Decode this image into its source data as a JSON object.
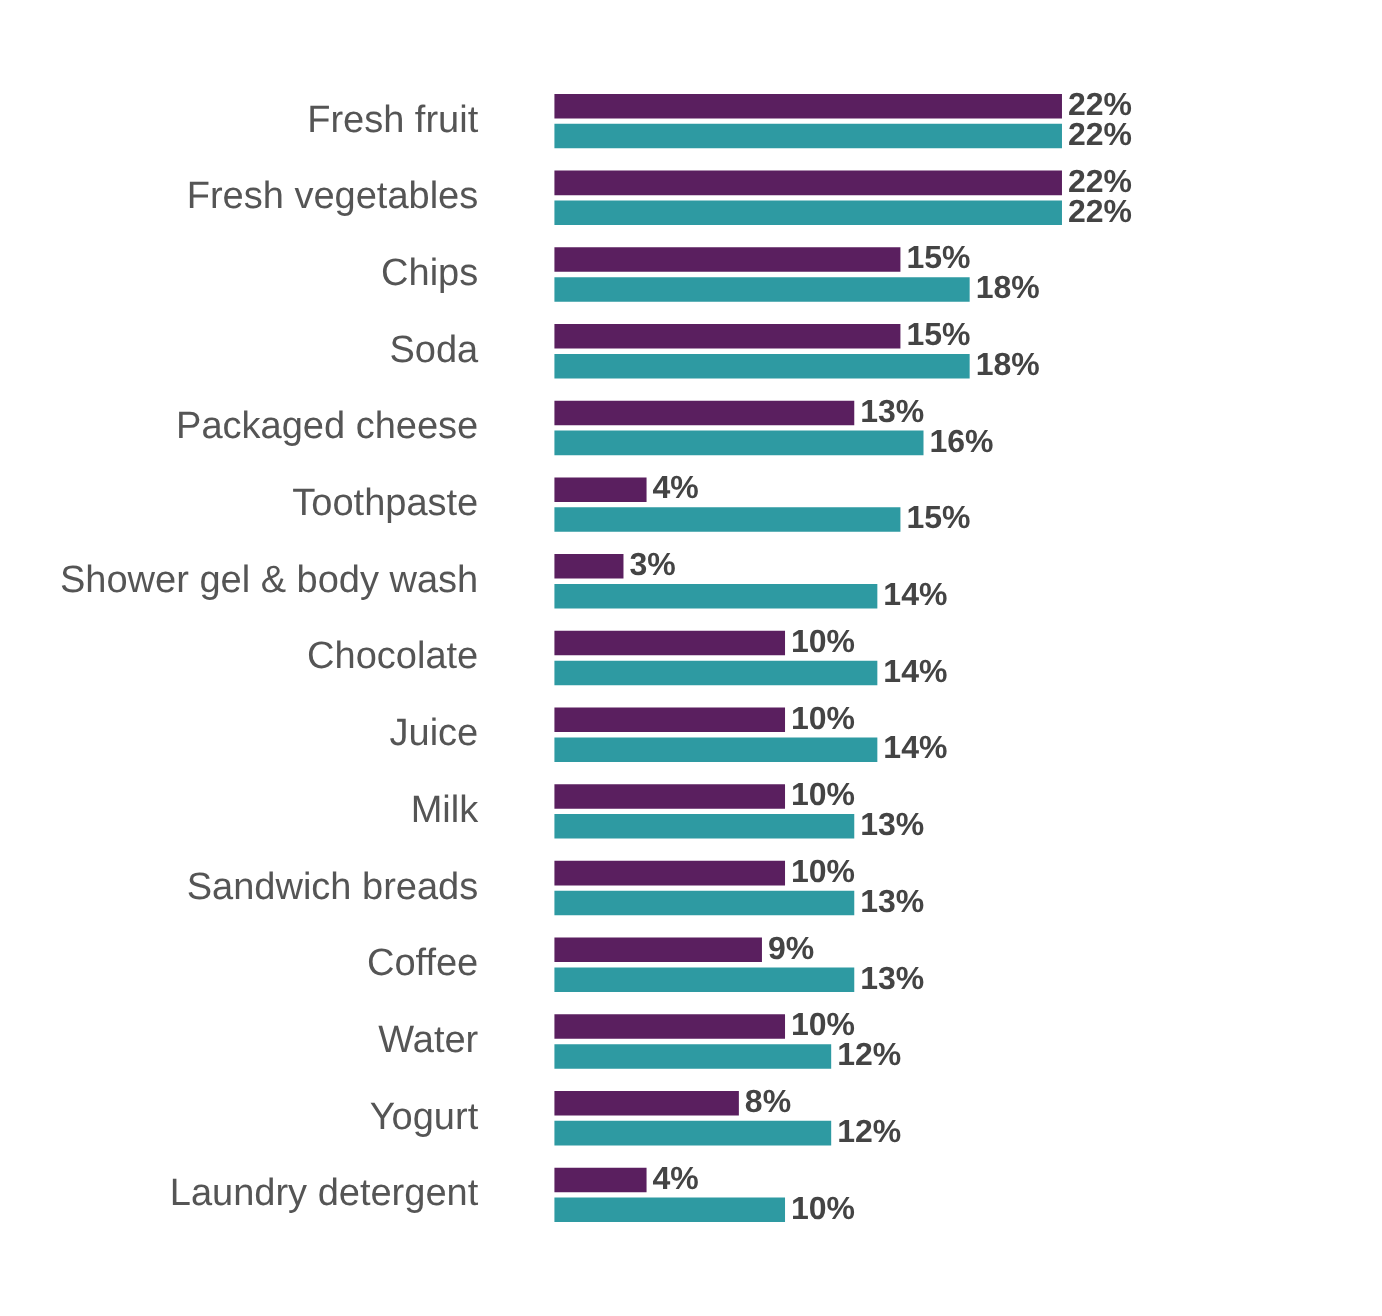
{
  "chart_data": {
    "type": "bar",
    "orientation": "horizontal",
    "categories": [
      "Fresh fruit",
      "Fresh vegetables",
      "Chips",
      "Soda",
      "Packaged cheese",
      "Toothpaste",
      "Shower gel & body wash",
      "Chocolate",
      "Juice",
      "Milk",
      "Sandwich breads",
      "Coffee",
      "Water",
      "Yogurt",
      "Laundry detergent"
    ],
    "series": [
      {
        "color": "#5a1f5f",
        "values": [
          22,
          22,
          15,
          15,
          13,
          4,
          3,
          10,
          10,
          10,
          10,
          9,
          10,
          8,
          4
        ],
        "value_labels": [
          "22%",
          "22%",
          "15%",
          "15%",
          "13%",
          "4%",
          "3%",
          "10%",
          "10%",
          "10%",
          "10%",
          "9%",
          "10%",
          "8%",
          "4%"
        ]
      },
      {
        "color": "#2e9aa2",
        "values": [
          22,
          22,
          18,
          18,
          16,
          15,
          14,
          14,
          14,
          13,
          13,
          13,
          12,
          12,
          10
        ],
        "value_labels": [
          "22%",
          "22%",
          "18%",
          "18%",
          "16%",
          "15%",
          "14%",
          "14%",
          "14%",
          "13%",
          "13%",
          "13%",
          "12%",
          "12%",
          "10%"
        ]
      }
    ],
    "tick_labels": "y",
    "legend": false,
    "grid": false
  }
}
